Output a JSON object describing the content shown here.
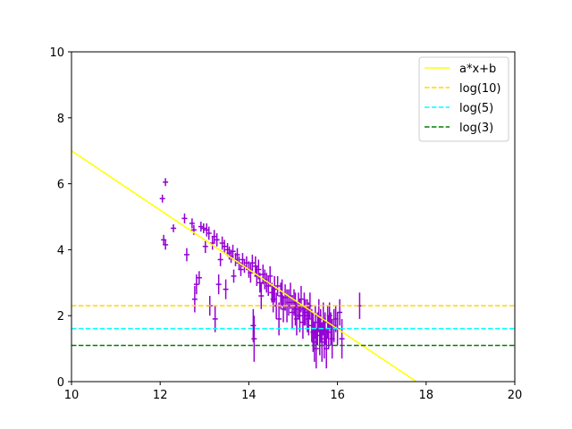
{
  "chart_data": {
    "type": "scatter",
    "title": "",
    "xlabel": "",
    "ylabel": "",
    "xlim": [
      10,
      20
    ],
    "ylim": [
      0,
      10
    ],
    "xticks": [
      "10",
      "12",
      "14",
      "16",
      "18",
      "20"
    ],
    "yticks": [
      "0",
      "2",
      "4",
      "6",
      "8",
      "10"
    ],
    "grid": false,
    "legend_position": "top-right",
    "colors": {
      "points": "#9400d3",
      "fit": "#ffff00",
      "log10": "#ffd700",
      "log5": "#00ffff",
      "log3": "#008000"
    },
    "series": [
      {
        "kind": "errorbar",
        "values": [
          [
            12.05,
            5.55,
            0.12
          ],
          [
            12.12,
            6.05,
            0.12
          ],
          [
            12.08,
            4.3,
            0.15
          ],
          [
            12.12,
            4.15,
            0.15
          ],
          [
            12.3,
            4.65,
            0.12
          ],
          [
            12.55,
            4.95,
            0.15
          ],
          [
            12.6,
            3.85,
            0.2
          ],
          [
            12.72,
            4.8,
            0.15
          ],
          [
            12.76,
            4.6,
            0.15
          ],
          [
            12.78,
            2.5,
            0.4
          ],
          [
            12.82,
            2.95,
            0.3
          ],
          [
            12.88,
            3.15,
            0.2
          ],
          [
            12.92,
            4.7,
            0.15
          ],
          [
            12.98,
            4.65,
            0.15
          ],
          [
            13.02,
            4.1,
            0.2
          ],
          [
            13.05,
            4.6,
            0.2
          ],
          [
            13.1,
            4.5,
            0.2
          ],
          [
            13.12,
            2.3,
            0.3
          ],
          [
            13.18,
            4.2,
            0.2
          ],
          [
            13.22,
            4.4,
            0.2
          ],
          [
            13.24,
            1.9,
            0.4
          ],
          [
            13.28,
            4.3,
            0.2
          ],
          [
            13.32,
            2.95,
            0.3
          ],
          [
            13.36,
            3.7,
            0.2
          ],
          [
            13.4,
            4.2,
            0.2
          ],
          [
            13.45,
            4.1,
            0.2
          ],
          [
            13.48,
            2.8,
            0.3
          ],
          [
            13.52,
            4.0,
            0.2
          ],
          [
            13.56,
            3.9,
            0.2
          ],
          [
            13.6,
            3.8,
            0.2
          ],
          [
            13.64,
            3.95,
            0.2
          ],
          [
            13.66,
            3.2,
            0.2
          ],
          [
            13.7,
            3.7,
            0.2
          ],
          [
            13.74,
            3.85,
            0.2
          ],
          [
            13.78,
            3.6,
            0.2
          ],
          [
            13.82,
            3.4,
            0.2
          ],
          [
            13.86,
            3.7,
            0.2
          ],
          [
            13.9,
            3.5,
            0.2
          ],
          [
            13.95,
            3.6,
            0.2
          ],
          [
            14.0,
            3.4,
            0.25
          ],
          [
            14.04,
            3.3,
            0.3
          ],
          [
            14.08,
            3.6,
            0.25
          ],
          [
            14.1,
            1.7,
            0.5
          ],
          [
            14.12,
            1.3,
            0.7
          ],
          [
            14.15,
            3.5,
            0.3
          ],
          [
            14.18,
            3.2,
            0.3
          ],
          [
            14.22,
            3.4,
            0.3
          ],
          [
            14.25,
            3.0,
            0.3
          ],
          [
            14.28,
            2.6,
            0.4
          ],
          [
            14.32,
            3.25,
            0.3
          ],
          [
            14.36,
            3.1,
            0.3
          ],
          [
            14.4,
            3.0,
            0.3
          ],
          [
            14.44,
            2.9,
            0.3
          ],
          [
            14.48,
            3.2,
            0.3
          ],
          [
            14.52,
            2.7,
            0.3
          ],
          [
            14.55,
            2.5,
            0.4
          ],
          [
            14.58,
            2.8,
            0.4
          ],
          [
            14.62,
            2.3,
            0.4
          ],
          [
            14.65,
            2.9,
            0.3
          ],
          [
            14.68,
            1.9,
            0.5
          ],
          [
            14.72,
            2.6,
            0.4
          ],
          [
            14.75,
            2.7,
            0.4
          ],
          [
            14.78,
            2.2,
            0.4
          ],
          [
            14.82,
            2.55,
            0.4
          ],
          [
            14.86,
            2.3,
            0.5
          ],
          [
            14.9,
            2.4,
            0.4
          ],
          [
            14.94,
            2.6,
            0.4
          ],
          [
            14.98,
            2.1,
            0.5
          ],
          [
            15.02,
            2.4,
            0.4
          ],
          [
            15.05,
            2.2,
            0.5
          ],
          [
            15.08,
            1.9,
            0.5
          ],
          [
            15.12,
            2.3,
            0.4
          ],
          [
            15.15,
            2.0,
            0.5
          ],
          [
            15.18,
            2.5,
            0.4
          ],
          [
            15.22,
            1.8,
            0.5
          ],
          [
            15.25,
            2.2,
            0.5
          ],
          [
            15.28,
            2.1,
            0.4
          ],
          [
            15.32,
            2.0,
            0.5
          ],
          [
            15.35,
            1.9,
            0.5
          ],
          [
            15.38,
            2.3,
            0.4
          ],
          [
            15.42,
            1.7,
            0.5
          ],
          [
            15.45,
            1.5,
            0.6
          ],
          [
            15.48,
            1.2,
            0.6
          ],
          [
            15.5,
            1.8,
            0.5
          ],
          [
            15.52,
            1.0,
            0.6
          ],
          [
            15.55,
            1.6,
            0.5
          ],
          [
            15.58,
            2.0,
            0.5
          ],
          [
            15.6,
            1.4,
            0.6
          ],
          [
            15.62,
            1.7,
            0.5
          ],
          [
            15.65,
            1.2,
            0.6
          ],
          [
            15.68,
            1.9,
            0.5
          ],
          [
            15.7,
            1.3,
            0.6
          ],
          [
            15.72,
            1.6,
            0.5
          ],
          [
            15.75,
            1.0,
            0.6
          ],
          [
            15.78,
            1.8,
            0.5
          ],
          [
            15.8,
            1.5,
            0.5
          ],
          [
            15.82,
            2.0,
            0.4
          ],
          [
            15.85,
            1.6,
            0.5
          ],
          [
            15.88,
            1.3,
            0.6
          ],
          [
            15.92,
            1.7,
            0.5
          ],
          [
            15.96,
            1.9,
            0.4
          ],
          [
            16.0,
            1.6,
            0.5
          ],
          [
            16.05,
            2.1,
            0.4
          ],
          [
            16.1,
            1.3,
            0.6
          ],
          [
            16.5,
            2.3,
            0.4
          ]
        ]
      },
      {
        "name": "a*x+b",
        "kind": "line",
        "x": [
          10,
          17.78
        ],
        "y": [
          7.0,
          0.0
        ]
      },
      {
        "name": "log(10)",
        "kind": "hline",
        "y": 2.3026
      },
      {
        "name": "log(5)",
        "kind": "hline",
        "y": 1.6094
      },
      {
        "name": "log(3)",
        "kind": "hline",
        "y": 1.0986
      }
    ],
    "legend": [
      "a*x+b",
      "log(10)",
      "log(5)",
      "log(3)"
    ]
  }
}
